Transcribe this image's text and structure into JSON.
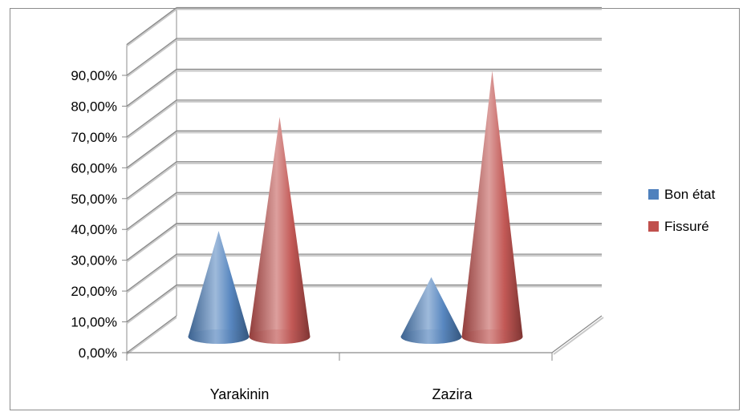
{
  "chart_data": {
    "type": "bar",
    "style": "3d-cone",
    "categories": [
      "Yarakinin",
      "Zazira"
    ],
    "series": [
      {
        "name": "Bon état",
        "values": [
          35.0,
          20.0
        ],
        "color": "#4f81bd"
      },
      {
        "name": "Fissuré",
        "values": [
          72.0,
          87.0
        ],
        "color": "#c0504d"
      }
    ],
    "y_ticks": [
      "0,00%",
      "10,00%",
      "20,00%",
      "30,00%",
      "40,00%",
      "50,00%",
      "60,00%",
      "70,00%",
      "80,00%",
      "90,00%"
    ],
    "ylim": [
      0,
      100
    ],
    "grid": true,
    "legend_position": "right"
  }
}
